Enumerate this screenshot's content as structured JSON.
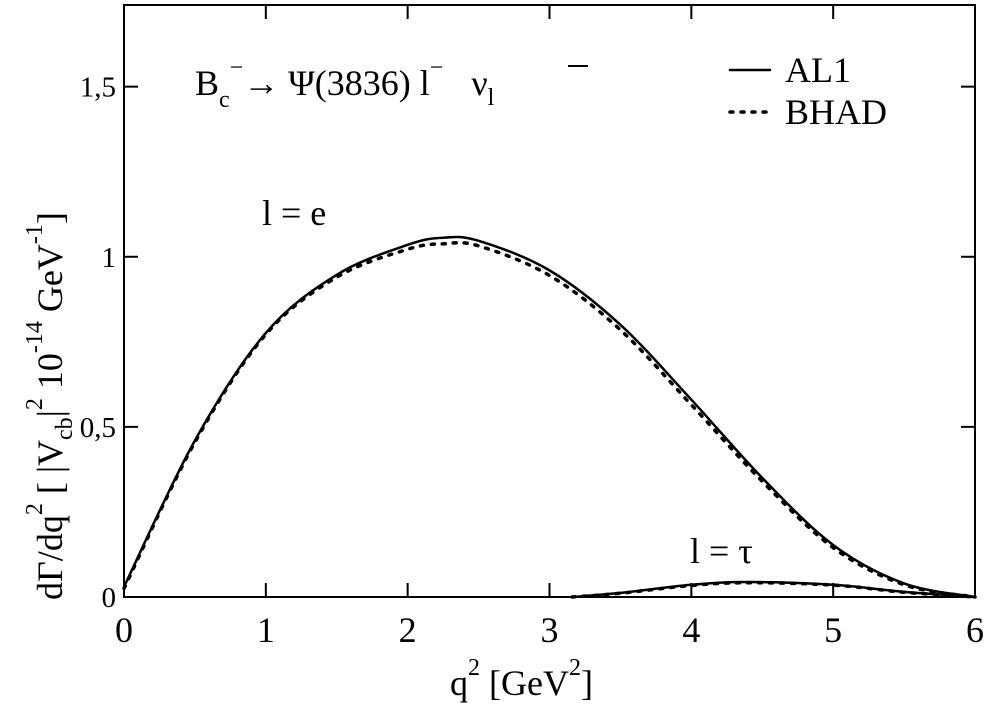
{
  "chart_data": {
    "type": "line",
    "title": [
      "B",
      "c",
      "−",
      "→ Ψ(3836)  l",
      "−",
      "ν",
      "l"
    ],
    "x_label": [
      "q",
      "2",
      " [GeV",
      "2",
      "]"
    ],
    "y_label": [
      "dΓ/dq",
      "2",
      "  [ |V",
      "cb",
      "|",
      "2",
      " 10",
      "-14",
      " GeV",
      "-1",
      "]"
    ],
    "annotations": [
      "l = e",
      "l = τ"
    ],
    "xlim": [
      0,
      6
    ],
    "xticks": [
      0,
      1,
      2,
      3,
      4,
      5,
      6
    ],
    "ylim": [
      0,
      1.74
    ],
    "yticks": [
      0,
      {
        "value": 0.5,
        "label": "0,5"
      },
      1,
      {
        "value": 1.5,
        "label": "1,5"
      }
    ],
    "legend": "top-right",
    "series": [
      {
        "name": "AL1",
        "color": "#000000",
        "dash": "solid",
        "curves": [
          {
            "x": [
              0,
              0.5,
              1,
              1.5,
              2,
              2.25,
              2.5,
              3,
              3.5,
              4,
              4.5,
              5,
              5.5,
              6
            ],
            "values": [
              0.03,
              0.46,
              0.776,
              0.947,
              1.035,
              1.056,
              1.047,
              0.96,
              0.8,
              0.58,
              0.35,
              0.153,
              0.04,
              0
            ]
          },
          {
            "x": [
              3.16,
              3.5,
              4,
              4.4,
              5,
              5.5,
              6
            ],
            "values": [
              0,
              0.012,
              0.036,
              0.044,
              0.036,
              0.015,
              0
            ]
          }
        ]
      },
      {
        "name": "BHAD",
        "color": "#000000",
        "dash": "dotted",
        "curves": [
          {
            "x": [
              0,
              0.5,
              1,
              1.5,
              2,
              2.25,
              2.5,
              3,
              3.5,
              4,
              4.5,
              5,
              5.5,
              6
            ],
            "values": [
              0.025,
              0.455,
              0.772,
              0.94,
              1.022,
              1.038,
              1.032,
              0.945,
              0.785,
              0.565,
              0.34,
              0.145,
              0.036,
              0
            ]
          },
          {
            "x": [
              3.16,
              3.5,
              4,
              4.4,
              5,
              5.5,
              6
            ],
            "values": [
              0,
              0.011,
              0.034,
              0.042,
              0.035,
              0.014,
              0
            ]
          }
        ]
      }
    ]
  }
}
